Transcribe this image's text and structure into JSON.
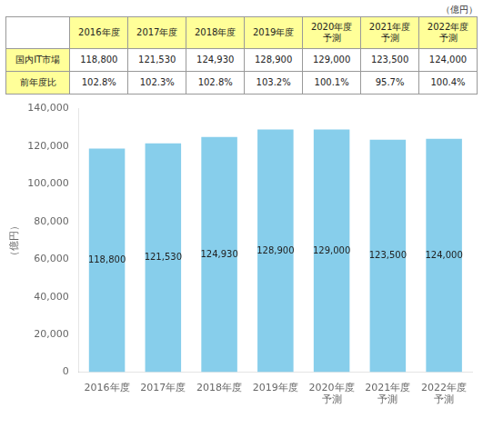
{
  "chart_data": [
    {
      "type": "table",
      "annotations": [
        "（億円）"
      ],
      "columns": [
        "2016年度",
        "2017年度",
        "2018年度",
        "2019年度",
        "2020年度\n予測",
        "2021年度\n予測",
        "2022年度\n予測"
      ],
      "color": "#FFFF99",
      "rows": [
        {
          "name": "国内IT市場",
          "values": [
            118800,
            121530,
            124930,
            128900,
            129000,
            123500,
            124000
          ],
          "value_labels": [
            "118,800",
            "121,530",
            "124,930",
            "128,900",
            "129,000",
            "123,500",
            "124,000"
          ]
        },
        {
          "name": "前年度比",
          "values": [
            102.8,
            102.3,
            102.8,
            103.2,
            100.1,
            95.7,
            100.4
          ],
          "value_labels": [
            "102.8%",
            "102.3%",
            "102.8%",
            "103.2%",
            "100.1%",
            "95.7%",
            "100.4%"
          ]
        }
      ]
    },
    {
      "type": "bar",
      "categories": [
        "2016年度",
        "2017年度",
        "2018年度",
        "2019年度",
        "2020年度\n予測",
        "2021年度\n予測",
        "2022年度\n予測"
      ],
      "values": [
        118800,
        121530,
        124930,
        128900,
        129000,
        123500,
        124000
      ],
      "value_labels": [
        "118,800",
        "121,530",
        "124,930",
        "128,900",
        "129,000",
        "123,500",
        "124,000"
      ],
      "data_labels": true,
      "color": "#87CEEB",
      "ylabel": "（億円）",
      "ylim": [
        0,
        140000
      ],
      "yticks": [
        0,
        {
          "value": 20000,
          "label": "20,000"
        },
        {
          "value": 40000,
          "label": "40,000"
        },
        {
          "value": 60000,
          "label": "60,000"
        },
        {
          "value": 80000,
          "label": "80,000"
        },
        {
          "value": 100000,
          "label": "100,000"
        },
        {
          "value": 120000,
          "label": "120,000"
        },
        {
          "value": 140000,
          "label": "140,000"
        }
      ],
      "grid": false,
      "legend": false
    }
  ]
}
